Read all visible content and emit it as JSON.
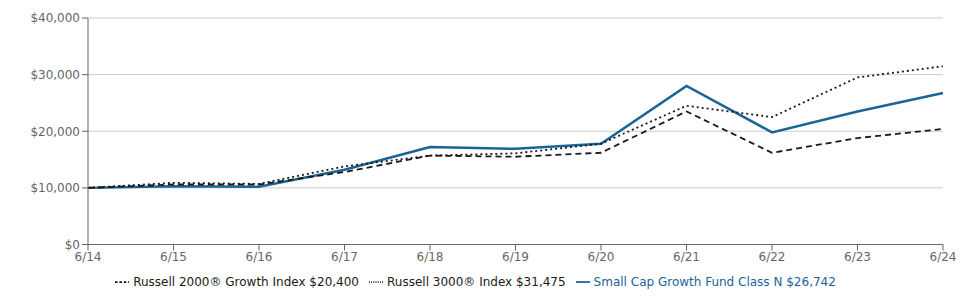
{
  "chart_data": {
    "type": "line",
    "categories": [
      "6/14",
      "6/15",
      "6/16",
      "6/17",
      "6/18",
      "6/19",
      "6/20",
      "6/21",
      "6/22",
      "6/23",
      "6/24"
    ],
    "series": [
      {
        "name": "Small Cap Growth Fund Class N $26,742",
        "color": "#1a6496",
        "line_style": "solid",
        "values": [
          10000,
          10300,
          10200,
          13200,
          17200,
          16900,
          17800,
          28000,
          19800,
          23500,
          26742
        ]
      },
      {
        "name": "Russell 3000® Index $31,475",
        "color": "#1a1a1a",
        "line_style": "dotted",
        "values": [
          10000,
          10900,
          10700,
          13800,
          15700,
          16100,
          17800,
          24500,
          22500,
          29500,
          31475
        ]
      },
      {
        "name": "Russell 2000® Growth Index $20,400",
        "color": "#1a1a1a",
        "line_style": "dashed",
        "values": [
          10000,
          10600,
          10600,
          12800,
          15700,
          15500,
          16200,
          23500,
          16200,
          18800,
          20400
        ]
      }
    ],
    "ylim": [
      0,
      40000
    ],
    "yticks": [
      {
        "value": 0,
        "label": "$0"
      },
      {
        "value": 10000,
        "label": "$10,000"
      },
      {
        "value": 20000,
        "label": "$20,000"
      },
      {
        "value": 30000,
        "label": "$30,000"
      },
      {
        "value": 40000,
        "label": "$40,000"
      }
    ],
    "grid": true,
    "legend": "bottom"
  }
}
